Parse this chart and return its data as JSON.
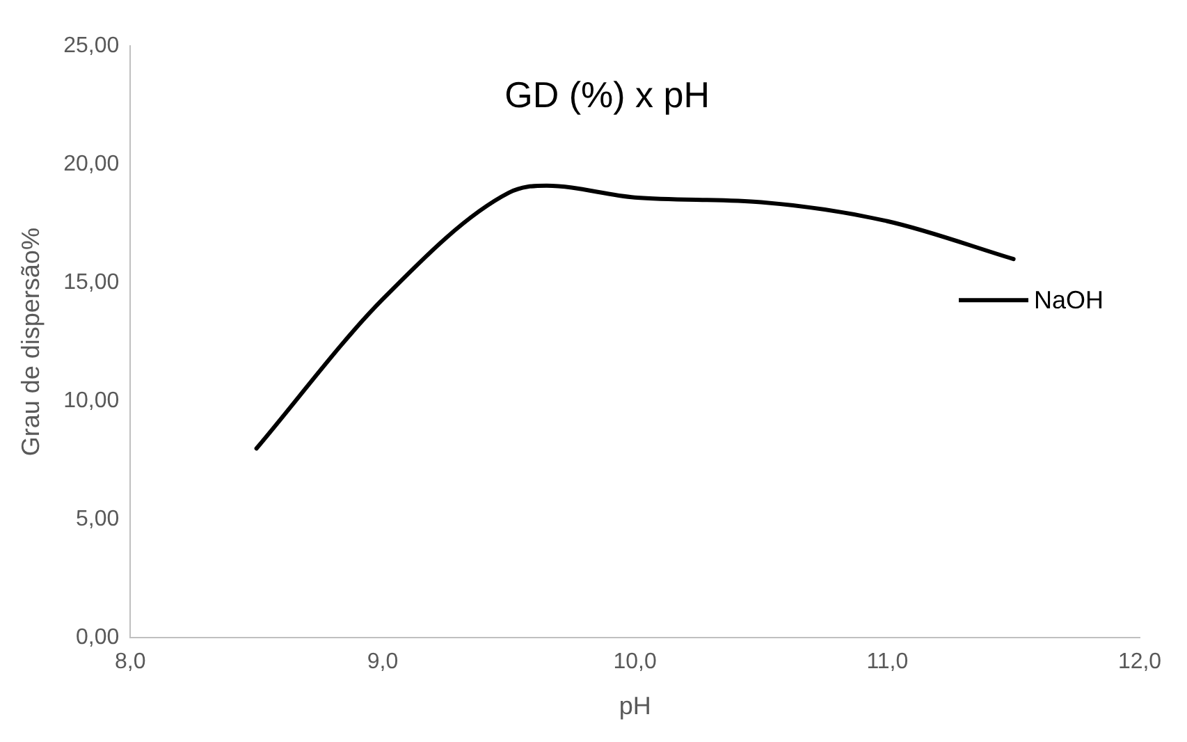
{
  "chart_data": {
    "type": "line",
    "title": "GD (%) x pH",
    "xlabel": "pH",
    "ylabel": "Grau de dispersão%",
    "x": [
      8.5,
      9.0,
      9.5,
      9.65,
      10.0,
      10.5,
      11.0,
      11.5
    ],
    "series": [
      {
        "name": "NaOH",
        "color": "#000000",
        "values": [
          8.0,
          14.3,
          18.8,
          19.1,
          18.6,
          18.4,
          17.6,
          16.0
        ]
      }
    ],
    "xlim": [
      8,
      12
    ],
    "xticks": [
      {
        "value": 8,
        "label": "8,0"
      },
      {
        "value": 9,
        "label": "9,0"
      },
      {
        "value": 10,
        "label": "10,0"
      },
      {
        "value": 11,
        "label": "11,0"
      },
      {
        "value": 12,
        "label": "12,0"
      }
    ],
    "ylim": [
      0,
      25
    ],
    "yticks": [
      {
        "value": 0,
        "label": "0,00"
      },
      {
        "value": 5,
        "label": "5,00"
      },
      {
        "value": 10,
        "label": "10,00"
      },
      {
        "value": 15,
        "label": "15,00"
      },
      {
        "value": 20,
        "label": "20,00"
      },
      {
        "value": 25,
        "label": "25,00"
      }
    ],
    "grid": false,
    "legend": "right",
    "marker": "none",
    "line_style": "solid"
  }
}
